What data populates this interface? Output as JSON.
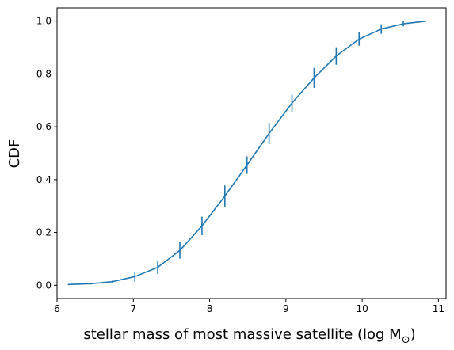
{
  "chart_data": {
    "type": "line",
    "title": "",
    "xlabel": "stellar mass of most massive satellite (log M",
    "xlabel_subscript": "⊙",
    "xlabel_suffix": ")",
    "ylabel": "CDF",
    "xlim": [
      6.0,
      11.1
    ],
    "ylim": [
      -0.05,
      1.05
    ],
    "xticks": [
      6,
      7,
      8,
      9,
      10,
      11
    ],
    "yticks": [
      0.0,
      0.2,
      0.4,
      0.6,
      0.8,
      1.0
    ],
    "xtick_labels": [
      "6",
      "7",
      "8",
      "9",
      "10",
      "11"
    ],
    "ytick_labels": [
      "0.0",
      "0.2",
      "0.4",
      "0.6",
      "0.8",
      "1.0"
    ],
    "grid": false,
    "legend": "none",
    "series": [
      {
        "color": "#1f77b4",
        "x": [
          6.15,
          6.44,
          6.73,
          7.02,
          7.32,
          7.61,
          7.9,
          8.2,
          8.49,
          8.78,
          9.08,
          9.37,
          9.66,
          9.96,
          10.25,
          10.54,
          10.84
        ],
        "y": [
          0.003,
          0.006,
          0.014,
          0.033,
          0.068,
          0.132,
          0.225,
          0.338,
          0.455,
          0.575,
          0.69,
          0.785,
          0.868,
          0.932,
          0.97,
          0.99,
          1.0
        ],
        "yerr": [
          0.002,
          0.003,
          0.007,
          0.019,
          0.025,
          0.031,
          0.035,
          0.04,
          0.033,
          0.04,
          0.032,
          0.038,
          0.033,
          0.025,
          0.018,
          0.01,
          0.0
        ]
      }
    ]
  }
}
